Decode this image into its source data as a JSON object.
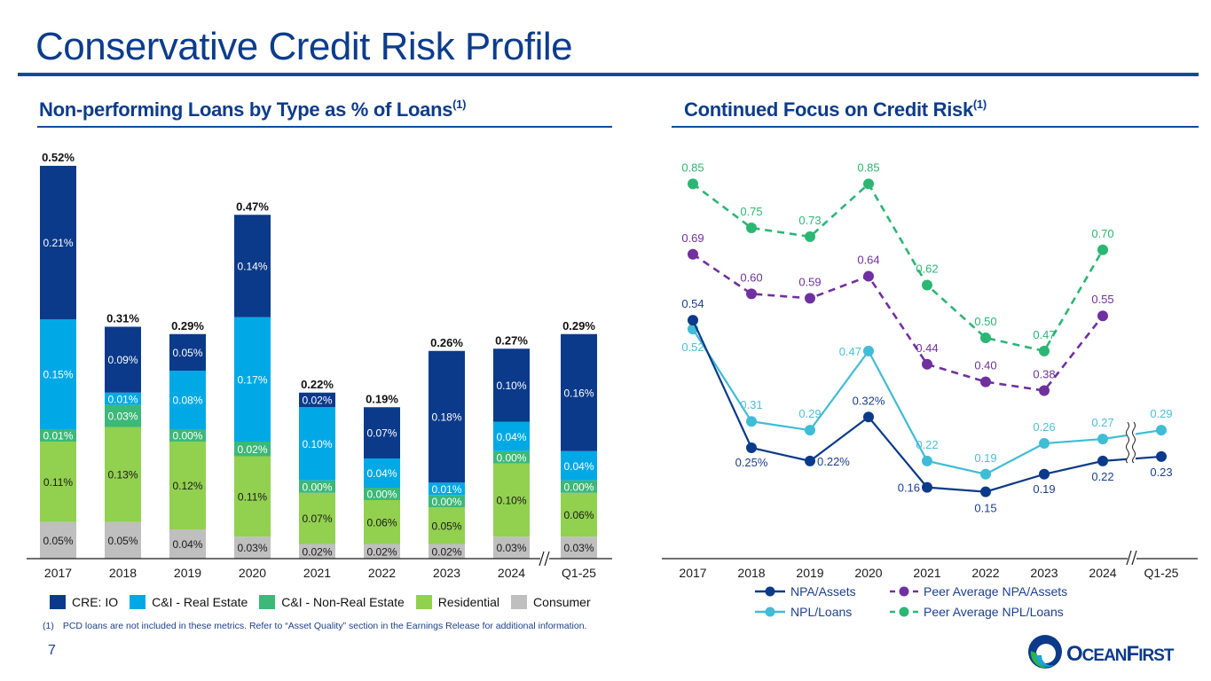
{
  "header": {
    "title": "Conservative Credit Risk Profile"
  },
  "left_panel": {
    "subtitle": "Non-performing Loans by Type as % of Loans",
    "subtitle_note": "(1)"
  },
  "right_panel": {
    "subtitle": "Continued Focus on Credit Risk",
    "subtitle_note": "(1)"
  },
  "footnote": {
    "marker": "(1)",
    "text": "PCD loans are not included in these metrics. Refer to “Asset Quality” section in the Earnings Release for additional information."
  },
  "page_number": "7",
  "logo": {
    "text": "OceanFirst",
    "colors": {
      "navy": "#0b3a8a",
      "green": "#2db34a",
      "cyan": "#1aa3dc"
    }
  },
  "chart_data": [
    {
      "type": "bar",
      "stacked": true,
      "title": "Non-performing Loans by Type as % of Loans",
      "categories": [
        "2017",
        "2018",
        "2019",
        "2020",
        "2021",
        "2022",
        "2023",
        "2024",
        "Q1-25"
      ],
      "axis_break_before": "Q1-25",
      "totals": [
        "0.52%",
        "0.31%",
        "0.29%",
        "0.47%",
        "0.22%",
        "0.19%",
        "0.26%",
        "0.27%",
        "0.29%"
      ],
      "total_values": [
        0.52,
        0.31,
        0.29,
        0.47,
        0.22,
        0.19,
        0.26,
        0.27,
        0.29
      ],
      "series": [
        {
          "name": "Consumer",
          "color": "#bfbfbf",
          "label_color": "#1a1a1a",
          "values": [
            0.05,
            0.05,
            0.04,
            0.03,
            0.02,
            0.02,
            0.02,
            0.03,
            0.03
          ],
          "labels": [
            "0.05%",
            "0.05%",
            "0.04%",
            "0.03%",
            "0.02%",
            "0.02%",
            "0.02%",
            "0.03%",
            "0.03%"
          ]
        },
        {
          "name": "Residential",
          "color": "#92d050",
          "label_color": "#1a1a1a",
          "values": [
            0.11,
            0.13,
            0.12,
            0.11,
            0.07,
            0.06,
            0.05,
            0.1,
            0.06
          ],
          "labels": [
            "0.11%",
            "0.13%",
            "0.12%",
            "0.11%",
            "0.07%",
            "0.06%",
            "0.05%",
            "0.10%",
            "0.06%"
          ]
        },
        {
          "name": "C&I - Non-Real Estate",
          "color": "#3cb878",
          "label_color": "#ffffff",
          "values": [
            0.01,
            0.03,
            0.0,
            0.02,
            0.0,
            0.0,
            0.0,
            0.0,
            0.0
          ],
          "labels": [
            "0.01%",
            "0.03%",
            "0.00%",
            "0.02%",
            "0.00%",
            "0.00%",
            "0.00%",
            "0.00%",
            "0.00%"
          ]
        },
        {
          "name": "C&I - Real Estate",
          "color": "#00a9e6",
          "label_color": "#ffffff",
          "values": [
            0.15,
            0.01,
            0.08,
            0.17,
            0.1,
            0.04,
            0.01,
            0.04,
            0.04
          ],
          "labels": [
            "0.15%",
            "0.01%",
            "0.08%",
            "0.17%",
            "0.10%",
            "0.04%",
            "0.01%",
            "0.04%",
            "0.04%"
          ]
        },
        {
          "name": "CRE: IO",
          "color": "#0b3a8a",
          "label_color": "#ffffff",
          "values": [
            0.21,
            0.09,
            0.05,
            0.14,
            0.02,
            0.07,
            0.18,
            0.1,
            0.16
          ],
          "labels": [
            "0.21%",
            "0.09%",
            "0.05%",
            "0.14%",
            "0.02%",
            "0.07%",
            "0.18%",
            "0.10%",
            "0.16%"
          ]
        }
      ],
      "legend": [
        "CRE: IO",
        "C&I - Real Estate",
        "C&I - Non-Real Estate",
        "Residential",
        "Consumer"
      ],
      "legend_position": "bottom",
      "ylim": [
        0,
        0.55
      ],
      "grid": false
    },
    {
      "type": "line",
      "title": "Continued Focus on Credit Risk",
      "categories": [
        "2017",
        "2018",
        "2019",
        "2020",
        "2021",
        "2022",
        "2023",
        "2024",
        "Q1-25"
      ],
      "axis_break_before": "Q1-25",
      "series": [
        {
          "name": "NPA/Assets",
          "color": "#0b3a8a",
          "dashed": false,
          "values": [
            0.54,
            0.25,
            0.22,
            0.32,
            0.16,
            0.15,
            0.19,
            0.22,
            0.23
          ],
          "labels": [
            "0.54",
            "0.25%",
            "0.22%",
            "0.32%",
            "0.16",
            "0.15",
            "0.19",
            "0.22",
            "0.23"
          ]
        },
        {
          "name": "NPL/Loans",
          "color": "#3fbcd6",
          "dashed": false,
          "values": [
            0.52,
            0.31,
            0.29,
            0.47,
            0.22,
            0.19,
            0.26,
            0.27,
            0.29
          ],
          "labels": [
            "0.52",
            "0.31",
            "0.29",
            "0.47",
            "0.22",
            "0.19",
            "0.26",
            "0.27",
            "0.29"
          ]
        },
        {
          "name": "Peer Average NPA/Assets",
          "color": "#7030a0",
          "dashed": true,
          "values": [
            0.69,
            0.6,
            0.59,
            0.64,
            0.44,
            0.4,
            0.38,
            0.55,
            null
          ],
          "labels": [
            "0.69",
            "0.60",
            "0.59",
            "0.64",
            "0.44",
            "0.40",
            "0.38",
            "0.55",
            null
          ]
        },
        {
          "name": "Peer Average NPL/Loans",
          "color": "#2bb673",
          "dashed": true,
          "values": [
            0.85,
            0.75,
            0.73,
            0.85,
            0.62,
            0.5,
            0.47,
            0.7,
            null
          ],
          "labels": [
            "0.85",
            "0.75",
            "0.73",
            "0.85",
            "0.62",
            "0.50",
            "0.47",
            "0.70",
            null
          ]
        }
      ],
      "legend": [
        "NPA/Assets",
        "Peer Average NPA/Assets",
        "NPL/Loans",
        "Peer Average NPL/Loans"
      ],
      "legend_position": "bottom",
      "ylim": [
        0,
        0.9
      ],
      "grid": false
    }
  ]
}
